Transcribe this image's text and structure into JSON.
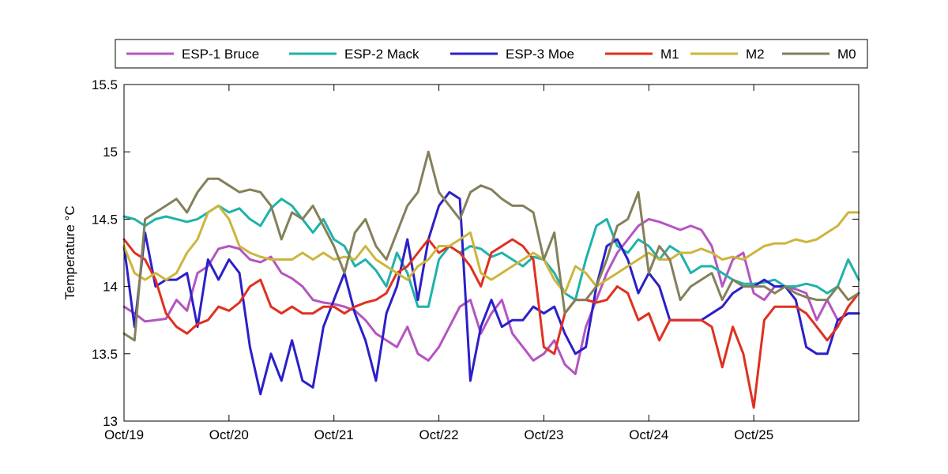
{
  "chart_data": {
    "type": "line",
    "title": "",
    "xlabel": "",
    "ylabel": "Temperature °C",
    "xlim": [
      0,
      7
    ],
    "ylim": [
      13,
      15.5
    ],
    "x_ticks": [
      0,
      1,
      2,
      3,
      4,
      5,
      6
    ],
    "x_tick_labels": [
      "Oct/19",
      "Oct/20",
      "Oct/21",
      "Oct/22",
      "Oct/23",
      "Oct/24",
      "Oct/25"
    ],
    "y_ticks": [
      13,
      13.5,
      14,
      14.5,
      15,
      15.5
    ],
    "y_tick_labels": [
      "13",
      "13.5",
      "14",
      "14.5",
      "15",
      "15.5"
    ],
    "grid": false,
    "legend_position": "top",
    "series": [
      {
        "name": "ESP-1 Bruce",
        "color": "#b455c0",
        "x": [
          0,
          0.1,
          0.2,
          0.3,
          0.4,
          0.5,
          0.6,
          0.7,
          0.8,
          0.9,
          1.0,
          1.1,
          1.2,
          1.3,
          1.4,
          1.5,
          1.6,
          1.7,
          1.8,
          1.9,
          2.0,
          2.1,
          2.2,
          2.3,
          2.4,
          2.5,
          2.6,
          2.7,
          2.8,
          2.9,
          3.0,
          3.1,
          3.2,
          3.3,
          3.4,
          3.5,
          3.6,
          3.7,
          3.8,
          3.9,
          4.0,
          4.1,
          4.2,
          4.3,
          4.4,
          4.5,
          4.6,
          4.7,
          4.8,
          4.9,
          5.0,
          5.1,
          5.2,
          5.3,
          5.4,
          5.5,
          5.6,
          5.7,
          5.8,
          5.9,
          6.0,
          6.1,
          6.2,
          6.3,
          6.4,
          6.5,
          6.6,
          6.7,
          6.8,
          6.9,
          7.0
        ],
        "y": [
          13.85,
          13.8,
          13.74,
          13.75,
          13.76,
          13.9,
          13.82,
          14.1,
          14.15,
          14.28,
          14.3,
          14.28,
          14.2,
          14.18,
          14.22,
          14.1,
          14.06,
          14.0,
          13.9,
          13.88,
          13.87,
          13.85,
          13.82,
          13.75,
          13.65,
          13.6,
          13.55,
          13.7,
          13.5,
          13.45,
          13.55,
          13.7,
          13.85,
          13.9,
          13.65,
          13.8,
          13.9,
          13.65,
          13.55,
          13.45,
          13.5,
          13.6,
          13.42,
          13.35,
          13.7,
          13.9,
          14.1,
          14.25,
          14.35,
          14.45,
          14.5,
          14.48,
          14.45,
          14.42,
          14.45,
          14.42,
          14.3,
          14.0,
          14.2,
          14.25,
          13.95,
          13.9,
          14.0,
          14.0,
          13.98,
          13.95,
          13.75,
          13.9,
          13.75,
          13.8,
          13.8
        ]
      },
      {
        "name": "ESP-2 Mack",
        "color": "#1fb2aa",
        "x": [
          0,
          0.1,
          0.2,
          0.3,
          0.4,
          0.5,
          0.6,
          0.7,
          0.8,
          0.9,
          1.0,
          1.1,
          1.2,
          1.3,
          1.4,
          1.5,
          1.6,
          1.7,
          1.8,
          1.9,
          2.0,
          2.1,
          2.2,
          2.3,
          2.4,
          2.5,
          2.6,
          2.7,
          2.8,
          2.9,
          3.0,
          3.1,
          3.2,
          3.3,
          3.4,
          3.5,
          3.6,
          3.7,
          3.8,
          3.9,
          4.0,
          4.1,
          4.2,
          4.3,
          4.4,
          4.5,
          4.6,
          4.7,
          4.8,
          4.9,
          5.0,
          5.1,
          5.2,
          5.3,
          5.4,
          5.5,
          5.6,
          5.7,
          5.8,
          5.9,
          6.0,
          6.1,
          6.2,
          6.3,
          6.4,
          6.5,
          6.6,
          6.7,
          6.8,
          6.9,
          7.0
        ],
        "y": [
          14.52,
          14.5,
          14.45,
          14.5,
          14.52,
          14.5,
          14.48,
          14.5,
          14.55,
          14.6,
          14.55,
          14.58,
          14.5,
          14.45,
          14.58,
          14.65,
          14.6,
          14.5,
          14.4,
          14.5,
          14.35,
          14.3,
          14.15,
          14.2,
          14.12,
          14.0,
          14.25,
          14.1,
          13.85,
          13.85,
          14.2,
          14.3,
          14.25,
          14.3,
          14.28,
          14.22,
          14.25,
          14.2,
          14.15,
          14.22,
          14.2,
          14.1,
          13.95,
          13.9,
          14.2,
          14.45,
          14.5,
          14.3,
          14.25,
          14.35,
          14.3,
          14.2,
          14.3,
          14.25,
          14.1,
          14.15,
          14.15,
          14.1,
          14.05,
          14.02,
          14.02,
          14.03,
          14.05,
          14.0,
          14.0,
          14.02,
          14.0,
          13.95,
          14.0,
          14.2,
          14.05
        ]
      },
      {
        "name": "ESP-3 Moe",
        "color": "#2b20c8",
        "x": [
          0,
          0.1,
          0.2,
          0.3,
          0.4,
          0.5,
          0.6,
          0.7,
          0.8,
          0.9,
          1.0,
          1.1,
          1.2,
          1.3,
          1.4,
          1.5,
          1.6,
          1.7,
          1.8,
          1.9,
          2.0,
          2.1,
          2.2,
          2.3,
          2.4,
          2.5,
          2.6,
          2.7,
          2.8,
          2.9,
          3.0,
          3.1,
          3.2,
          3.3,
          3.4,
          3.5,
          3.6,
          3.7,
          3.8,
          3.9,
          4.0,
          4.1,
          4.2,
          4.3,
          4.4,
          4.5,
          4.6,
          4.7,
          4.8,
          4.9,
          5.0,
          5.1,
          5.2,
          5.3,
          5.4,
          5.5,
          5.6,
          5.7,
          5.8,
          5.9,
          6.0,
          6.1,
          6.2,
          6.3,
          6.4,
          6.5,
          6.6,
          6.7,
          6.8,
          6.9,
          7.0
        ],
        "y": [
          14.3,
          13.7,
          14.4,
          14.0,
          14.05,
          14.05,
          14.1,
          13.7,
          14.2,
          14.05,
          14.2,
          14.1,
          13.55,
          13.2,
          13.5,
          13.3,
          13.6,
          13.3,
          13.25,
          13.7,
          13.9,
          14.1,
          13.8,
          13.6,
          13.3,
          13.8,
          14.0,
          14.35,
          13.9,
          14.35,
          14.6,
          14.7,
          14.65,
          13.3,
          13.7,
          13.9,
          13.7,
          13.75,
          13.75,
          13.85,
          13.8,
          13.85,
          13.65,
          13.5,
          13.55,
          14.0,
          14.3,
          14.35,
          14.2,
          13.95,
          14.1,
          14.0,
          13.75,
          13.75,
          13.75,
          13.75,
          13.8,
          13.85,
          13.95,
          14.0,
          14.0,
          14.05,
          14.0,
          14.0,
          13.9,
          13.55,
          13.5,
          13.5,
          13.75,
          13.8,
          13.8
        ]
      },
      {
        "name": "M1",
        "color": "#e03020",
        "x": [
          0,
          0.1,
          0.2,
          0.3,
          0.4,
          0.5,
          0.6,
          0.7,
          0.8,
          0.9,
          1.0,
          1.1,
          1.2,
          1.3,
          1.4,
          1.5,
          1.6,
          1.7,
          1.8,
          1.9,
          2.0,
          2.1,
          2.2,
          2.3,
          2.4,
          2.5,
          2.6,
          2.7,
          2.8,
          2.9,
          3.0,
          3.1,
          3.2,
          3.3,
          3.4,
          3.5,
          3.6,
          3.7,
          3.8,
          3.9,
          4.0,
          4.1,
          4.2,
          4.3,
          4.4,
          4.5,
          4.6,
          4.7,
          4.8,
          4.9,
          5.0,
          5.1,
          5.2,
          5.3,
          5.4,
          5.5,
          5.6,
          5.7,
          5.8,
          5.9,
          6.0,
          6.1,
          6.2,
          6.3,
          6.4,
          6.5,
          6.6,
          6.7,
          6.8,
          6.9,
          7.0
        ],
        "y": [
          14.35,
          14.25,
          14.2,
          14.05,
          13.8,
          13.7,
          13.65,
          13.72,
          13.75,
          13.85,
          13.82,
          13.88,
          14.0,
          14.05,
          13.85,
          13.8,
          13.85,
          13.8,
          13.8,
          13.85,
          13.85,
          13.8,
          13.85,
          13.88,
          13.9,
          13.95,
          14.1,
          14.15,
          14.25,
          14.35,
          14.25,
          14.3,
          14.25,
          14.15,
          14.0,
          14.25,
          14.3,
          14.35,
          14.3,
          14.2,
          13.55,
          13.5,
          13.8,
          13.9,
          13.9,
          13.88,
          13.9,
          14.0,
          13.95,
          13.75,
          13.8,
          13.6,
          13.75,
          13.75,
          13.75,
          13.75,
          13.7,
          13.4,
          13.7,
          13.5,
          13.1,
          13.75,
          13.85,
          13.85,
          13.85,
          13.8,
          13.7,
          13.6,
          13.7,
          13.85,
          13.95
        ]
      },
      {
        "name": "M2",
        "color": "#cdb53c",
        "x": [
          0,
          0.1,
          0.2,
          0.3,
          0.4,
          0.5,
          0.6,
          0.7,
          0.8,
          0.9,
          1.0,
          1.1,
          1.2,
          1.3,
          1.4,
          1.5,
          1.6,
          1.7,
          1.8,
          1.9,
          2.0,
          2.1,
          2.2,
          2.3,
          2.4,
          2.5,
          2.6,
          2.7,
          2.8,
          2.9,
          3.0,
          3.1,
          3.2,
          3.3,
          3.4,
          3.5,
          3.6,
          3.7,
          3.8,
          3.9,
          4.0,
          4.1,
          4.2,
          4.3,
          4.4,
          4.5,
          4.6,
          4.7,
          4.8,
          4.9,
          5.0,
          5.1,
          5.2,
          5.3,
          5.4,
          5.5,
          5.6,
          5.7,
          5.8,
          5.9,
          6.0,
          6.1,
          6.2,
          6.3,
          6.4,
          6.5,
          6.6,
          6.7,
          6.8,
          6.9,
          7.0
        ],
        "y": [
          14.3,
          14.1,
          14.05,
          14.1,
          14.05,
          14.1,
          14.25,
          14.35,
          14.55,
          14.6,
          14.5,
          14.3,
          14.25,
          14.22,
          14.2,
          14.2,
          14.2,
          14.25,
          14.2,
          14.25,
          14.2,
          14.22,
          14.2,
          14.3,
          14.2,
          14.15,
          14.1,
          14.05,
          14.15,
          14.2,
          14.3,
          14.3,
          14.35,
          14.4,
          14.1,
          14.05,
          14.1,
          14.15,
          14.2,
          14.25,
          14.2,
          14.05,
          13.95,
          14.15,
          14.1,
          14.0,
          14.05,
          14.1,
          14.15,
          14.2,
          14.25,
          14.2,
          14.2,
          14.25,
          14.25,
          14.28,
          14.25,
          14.2,
          14.22,
          14.2,
          14.25,
          14.3,
          14.32,
          14.32,
          14.35,
          14.33,
          14.35,
          14.4,
          14.45,
          14.55,
          14.55
        ]
      },
      {
        "name": "M0",
        "color": "#84805a",
        "x": [
          0,
          0.1,
          0.2,
          0.3,
          0.4,
          0.5,
          0.6,
          0.7,
          0.8,
          0.9,
          1.0,
          1.1,
          1.2,
          1.3,
          1.4,
          1.5,
          1.6,
          1.7,
          1.8,
          1.9,
          2.0,
          2.1,
          2.2,
          2.3,
          2.4,
          2.5,
          2.6,
          2.7,
          2.8,
          2.9,
          3.0,
          3.1,
          3.2,
          3.3,
          3.4,
          3.5,
          3.6,
          3.7,
          3.8,
          3.9,
          4.0,
          4.1,
          4.2,
          4.3,
          4.4,
          4.5,
          4.6,
          4.7,
          4.8,
          4.9,
          5.0,
          5.1,
          5.2,
          5.3,
          5.4,
          5.5,
          5.6,
          5.7,
          5.8,
          5.9,
          6.0,
          6.1,
          6.2,
          6.3,
          6.4,
          6.5,
          6.6,
          6.7,
          6.8,
          6.9,
          7.0
        ],
        "y": [
          13.65,
          13.6,
          14.5,
          14.55,
          14.6,
          14.65,
          14.55,
          14.7,
          14.8,
          14.8,
          14.75,
          14.7,
          14.72,
          14.7,
          14.6,
          14.35,
          14.55,
          14.5,
          14.6,
          14.45,
          14.3,
          14.1,
          14.4,
          14.5,
          14.3,
          14.2,
          14.4,
          14.6,
          14.7,
          15.0,
          14.7,
          14.6,
          14.5,
          14.7,
          14.75,
          14.72,
          14.65,
          14.6,
          14.6,
          14.55,
          14.2,
          14.4,
          13.8,
          13.9,
          13.9,
          14.0,
          14.2,
          14.45,
          14.5,
          14.7,
          14.1,
          14.3,
          14.2,
          13.9,
          14.0,
          14.05,
          14.1,
          13.9,
          14.05,
          14.0,
          14.0,
          14.0,
          13.95,
          14.0,
          13.95,
          13.92,
          13.9,
          13.9,
          14.0,
          13.9,
          13.95
        ]
      }
    ]
  }
}
